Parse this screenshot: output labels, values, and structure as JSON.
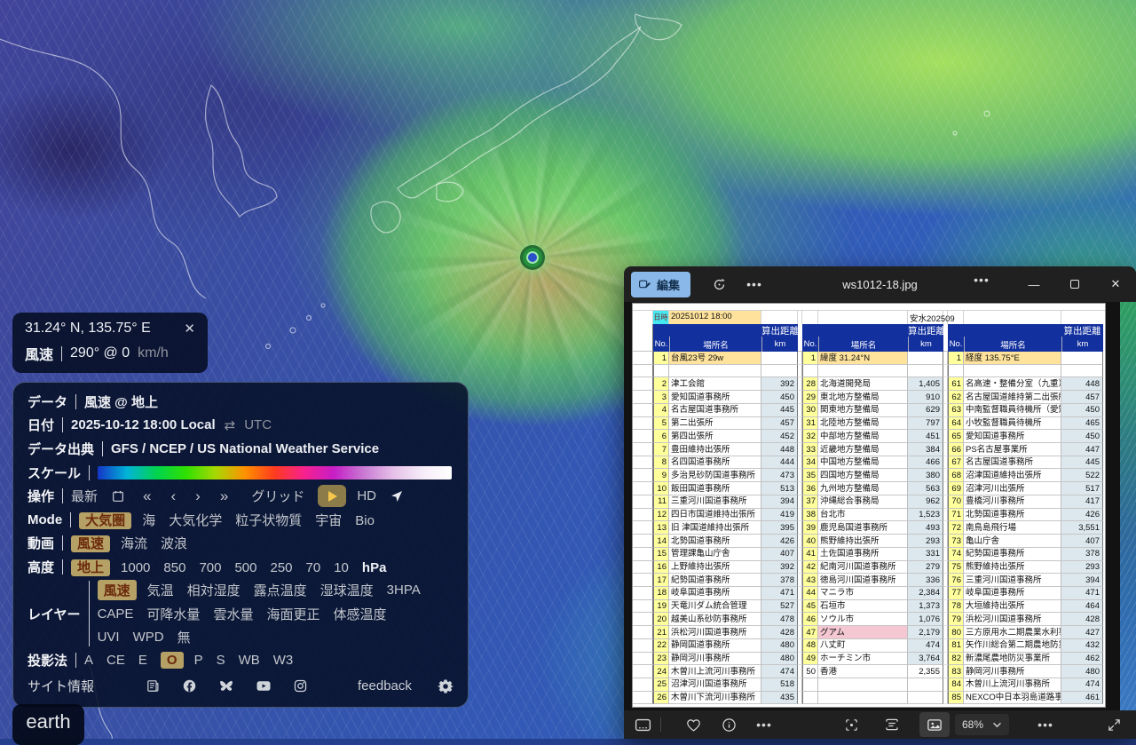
{
  "colors": {
    "accent-tan": "#b5a065",
    "accent-text": "#6b2a0c",
    "header-navy": "#12309e",
    "cell-yellow": "#ffff9c",
    "cell-tan": "#ffe39c",
    "cell-cyan": "#45e8f0",
    "cell-value": "#dce8ee",
    "cell-pink": "#f4c7d2",
    "edit-blue": "#8ab8e8"
  },
  "map": {
    "earth_button": "earth",
    "location_box": {
      "coords": "31.24° N, 135.75° E",
      "close": "✕",
      "label": "風速",
      "value": "290° @ 0",
      "unit": "km/h"
    }
  },
  "panel": {
    "data_label": "データ",
    "data_value": "風速 @ 地上",
    "date_label": "日付",
    "date_value": "2025-10-12 18:00 Local",
    "date_swap": "⇄",
    "date_toggle": "UTC",
    "source_label": "データ出典",
    "source_value": "GFS / NCEP / US National Weather Service",
    "scale_label": "スケール",
    "scale_colors": [
      "#1535c8",
      "#00b4d8",
      "#00d34f",
      "#30e000",
      "#a8d800",
      "#ff9000",
      "#ff3b1f",
      "#f7218f",
      "#c61ec6",
      "#c878d2",
      "#e5bfe8",
      "#f6ecf8",
      "#ffffff"
    ],
    "control_label": "操作",
    "control": {
      "latest": "最新",
      "back2": "«",
      "back1": "‹",
      "fwd1": "›",
      "fwd2": "»",
      "grid": "グリッド",
      "hd": "HD"
    },
    "mode_label": "Mode",
    "mode_items": [
      {
        "label": "大気圏",
        "selected": true
      },
      {
        "label": "海"
      },
      {
        "label": "大気化学"
      },
      {
        "label": "粒子状物質"
      },
      {
        "label": "宇宙"
      },
      {
        "label": "Bio"
      }
    ],
    "anim_label": "動画",
    "anim_items": [
      {
        "label": "風速",
        "selected": true
      },
      {
        "label": "海流"
      },
      {
        "label": "波浪"
      }
    ],
    "height_label": "高度",
    "height_items": [
      {
        "label": "地上",
        "selected": true
      },
      {
        "label": "1000"
      },
      {
        "label": "850"
      },
      {
        "label": "700"
      },
      {
        "label": "500"
      },
      {
        "label": "250"
      },
      {
        "label": "70"
      },
      {
        "label": "10"
      },
      {
        "label": "hPa",
        "unit": true
      }
    ],
    "overlay_label": "レイヤー",
    "overlay_line1": [
      {
        "label": "風速",
        "selected": true
      },
      {
        "label": "気温"
      },
      {
        "label": "相対湿度"
      },
      {
        "label": "露点温度"
      },
      {
        "label": "湿球温度"
      },
      {
        "label": "3HPA"
      }
    ],
    "overlay_line2": [
      {
        "label": "CAPE"
      },
      {
        "label": "可降水量"
      },
      {
        "label": "雲水量"
      },
      {
        "label": "海面更正"
      },
      {
        "label": "体感温度"
      }
    ],
    "overlay_line3": [
      {
        "label": "UVI"
      },
      {
        "label": "WPD"
      },
      {
        "label": "無"
      }
    ],
    "projection_label": "投影法",
    "projection_items": [
      {
        "label": "A"
      },
      {
        "label": "CE"
      },
      {
        "label": "E"
      },
      {
        "label": "O",
        "selected": true
      },
      {
        "label": "P"
      },
      {
        "label": "S"
      },
      {
        "label": "WB"
      },
      {
        "label": "W3"
      }
    ],
    "site_label": "サイト情報",
    "feedback_label": "feedback"
  },
  "viewer": {
    "edit_label": "編集",
    "title": "ws1012-18.jpg",
    "minimize": "—",
    "close": "✕",
    "zoom_level": "68%"
  },
  "sheet": {
    "datetime_label": "日時",
    "datetime_value": "20251012 18:00",
    "note": "安水202509",
    "header": {
      "distance": "算出距離",
      "no": "No.",
      "place": "場所名",
      "km": "km"
    },
    "row1": [
      {
        "no": "1",
        "place": "台風23号 29w"
      },
      {
        "no": "1",
        "place": "緯度 31.24°N"
      },
      {
        "no": "1",
        "place": "経度 135.75°E"
      }
    ],
    "groups": [
      {
        "rows": [
          [
            "2",
            "津工会館",
            "392"
          ],
          [
            "3",
            "愛知国道事務所",
            "450"
          ],
          [
            "4",
            "名古屋国道事務所",
            "445"
          ],
          [
            "5",
            "第二出張所",
            "457"
          ],
          [
            "6",
            "第四出張所",
            "452"
          ],
          [
            "7",
            "豊田維持出張所",
            "448"
          ],
          [
            "8",
            "名四国道事務所",
            "444"
          ],
          [
            "9",
            "多治見砂防国道事務所",
            "473"
          ],
          [
            "10",
            "飯田国道事務所",
            "513"
          ],
          [
            "11",
            "三重河川国道事務所",
            "394"
          ],
          [
            "12",
            "四日市国道維持出張所",
            "419"
          ],
          [
            "13",
            "旧 津国道維持出張所",
            "395"
          ],
          [
            "14",
            "北勢国道事務所",
            "426"
          ],
          [
            "15",
            "管理課亀山庁舎",
            "407"
          ],
          [
            "16",
            "上野維持出張所",
            "392"
          ],
          [
            "17",
            "紀勢国道事務所",
            "378"
          ],
          [
            "18",
            "岐阜国道事務所",
            "471"
          ],
          [
            "19",
            "天竜川ダム統合管理",
            "527"
          ],
          [
            "20",
            "越美山系砂防事務所",
            "478"
          ],
          [
            "21",
            "浜松河川国道事務所",
            "428"
          ],
          [
            "22",
            "静岡国道事務所",
            "480"
          ],
          [
            "23",
            "静岡河川事務所",
            "480"
          ],
          [
            "24",
            "木曽川上流河川事務所",
            "474"
          ],
          [
            "25",
            "沼津河川国道事務所",
            "518"
          ],
          [
            "26",
            "木曽川下流河川事務所",
            "435"
          ]
        ]
      },
      {
        "rows": [
          [
            "28",
            "北海道開発局",
            "1,405"
          ],
          [
            "29",
            "東北地方整備局",
            "910"
          ],
          [
            "30",
            "関東地方整備局",
            "629"
          ],
          [
            "31",
            "北陸地方整備局",
            "797"
          ],
          [
            "32",
            "中部地方整備局",
            "451"
          ],
          [
            "33",
            "近畿地方整備局",
            "384"
          ],
          [
            "34",
            "中国地方整備局",
            "466"
          ],
          [
            "35",
            "四国地方整備局",
            "380"
          ],
          [
            "36",
            "九州地方整備局",
            "563"
          ],
          [
            "37",
            "沖縄総合事務局",
            "962"
          ],
          [
            "38",
            "台北市",
            "1,523"
          ],
          [
            "39",
            "鹿児島国道事務所",
            "493"
          ],
          [
            "40",
            "熊野維持出張所",
            "293"
          ],
          [
            "41",
            "土佐国道事務所",
            "331"
          ],
          [
            "42",
            "紀南河川国道事務所",
            "279"
          ],
          [
            "43",
            "徳島河川国道事務所",
            "336"
          ],
          [
            "44",
            "マニラ市",
            "2,384"
          ],
          [
            "45",
            "石垣市",
            "1,373"
          ],
          [
            "46",
            "ソウル市",
            "1,076"
          ],
          [
            "47",
            "グアム",
            "2,179",
            "pink"
          ],
          [
            "48",
            "八丈町",
            "474"
          ],
          [
            "49",
            "ホーチミン市",
            "3,764"
          ],
          [
            "50",
            "香港",
            "2,355",
            "plain"
          ],
          null,
          null
        ]
      },
      {
        "rows": [
          [
            "61",
            "名高速・整備分室（九重）",
            "448"
          ],
          [
            "62",
            "名古屋国道維持第二出張所",
            "457"
          ],
          [
            "63",
            "中南監督職員待機所（愛知国",
            "450"
          ],
          [
            "64",
            "小牧監督職員待機所",
            "465"
          ],
          [
            "65",
            "愛知国道事務所",
            "450"
          ],
          [
            "66",
            "PS名古屋事業所",
            "447"
          ],
          [
            "67",
            "名古屋国道事務所",
            "445"
          ],
          [
            "68",
            "沼津国道維持出張所",
            "522"
          ],
          [
            "69",
            "沼津河川出張所",
            "517"
          ],
          [
            "70",
            "豊橋河川事務所",
            "417"
          ],
          [
            "71",
            "北勢国道事務所",
            "426"
          ],
          [
            "72",
            "南鳥島飛行場",
            "3,551"
          ],
          [
            "73",
            "亀山庁舎",
            "407"
          ],
          [
            "74",
            "紀勢国道事務所",
            "378"
          ],
          [
            "75",
            "熊野維持出張所",
            "293"
          ],
          [
            "76",
            "三重河川国道事務所",
            "394"
          ],
          [
            "77",
            "岐阜国道事務所",
            "471"
          ],
          [
            "78",
            "大垣維持出張所",
            "464"
          ],
          [
            "79",
            "浜松河川国道事務所",
            "428"
          ],
          [
            "80",
            "三方原用水二期農業水利事業",
            "427"
          ],
          [
            "81",
            "矢作川総合第二期農地防災事",
            "432"
          ],
          [
            "82",
            "新濃尾農地防災事業所",
            "462"
          ],
          [
            "83",
            "静岡河川事務所",
            "480"
          ],
          [
            "84",
            "木曽川上流河川事務所",
            "474"
          ],
          [
            "85",
            "NEXCO中日本羽島道路事務",
            "461"
          ]
        ]
      }
    ]
  }
}
